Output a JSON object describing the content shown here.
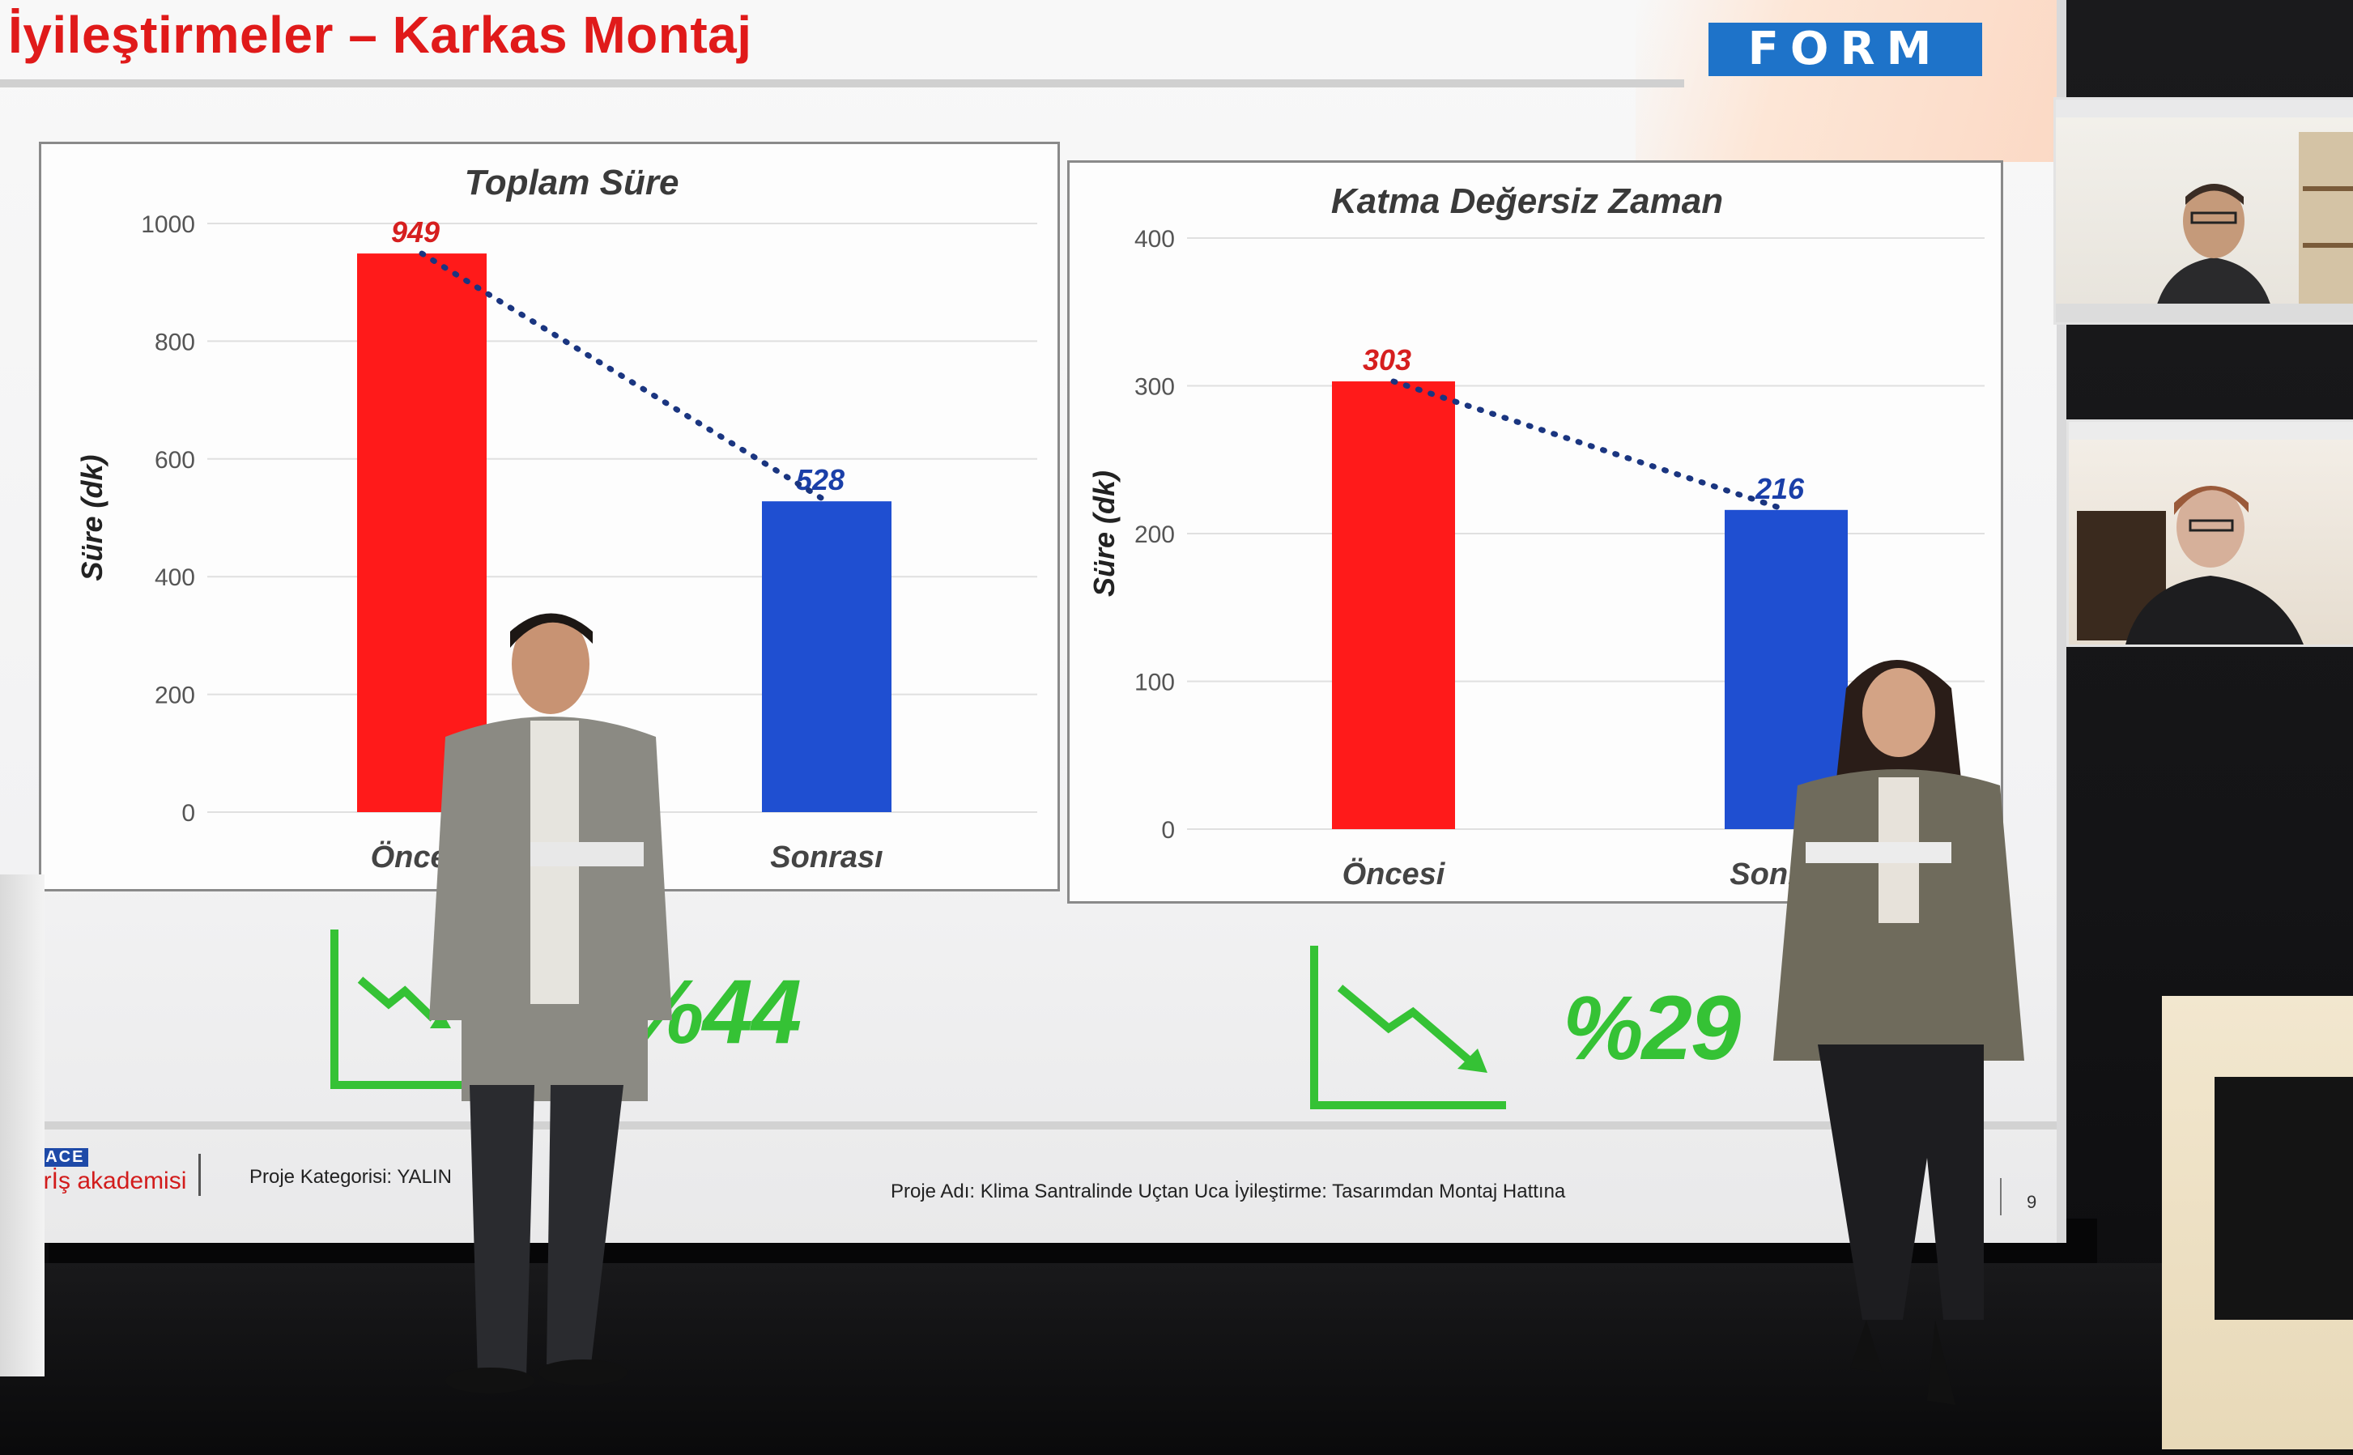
{
  "slide": {
    "title": "İyileştirmeler – Karkas Montaj",
    "logo_text": "FORM",
    "footer": {
      "logo_top": "SPACE",
      "logo_bottom": "Gİrİş akademisi",
      "category": "Proje Kategorisi: YALIN",
      "project": "Proje Adı: Klima Santralinde Uçtan Uca İyileştirme: Tasarımdan Montaj Hattına",
      "page": "9"
    },
    "reductions": [
      {
        "label": "%44",
        "icon": "trend-down-icon"
      },
      {
        "label": "%29",
        "icon": "trend-down-icon"
      }
    ]
  },
  "chart_data": [
    {
      "type": "bar",
      "title": "Toplam Süre",
      "ylabel": "Süre (dk)",
      "xlabel": "",
      "categories": [
        "Öncesi",
        "Sonrası"
      ],
      "values": [
        949,
        528
      ],
      "data_labels": [
        "949",
        "528"
      ],
      "ylim": [
        0,
        1000
      ],
      "yticks": [
        0,
        200,
        400,
        600,
        800,
        1000
      ],
      "bar_colors": [
        "#ff1a1a",
        "#1f4fd1"
      ],
      "label_colors": [
        "#d61f1f",
        "#1a3fa8"
      ],
      "trendline": "dotted",
      "trendline_color": "#1a3580",
      "grid": true
    },
    {
      "type": "bar",
      "title": "Katma Değersiz Zaman",
      "ylabel": "Süre (dk)",
      "xlabel": "",
      "categories": [
        "Öncesi",
        "Sonrası"
      ],
      "values": [
        303,
        216
      ],
      "data_labels": [
        "303",
        "216"
      ],
      "ylim": [
        0,
        400
      ],
      "yticks": [
        0,
        100,
        200,
        300,
        400
      ],
      "bar_colors": [
        "#ff1a1a",
        "#1f4fd1"
      ],
      "label_colors": [
        "#d61f1f",
        "#1a3fa8"
      ],
      "trendline": "dotted",
      "trendline_color": "#1a3580",
      "grid": true
    }
  ],
  "colors": {
    "title_red": "#e01a1a",
    "accent_green": "#35c235",
    "logo_blue": "#1e73c9"
  }
}
